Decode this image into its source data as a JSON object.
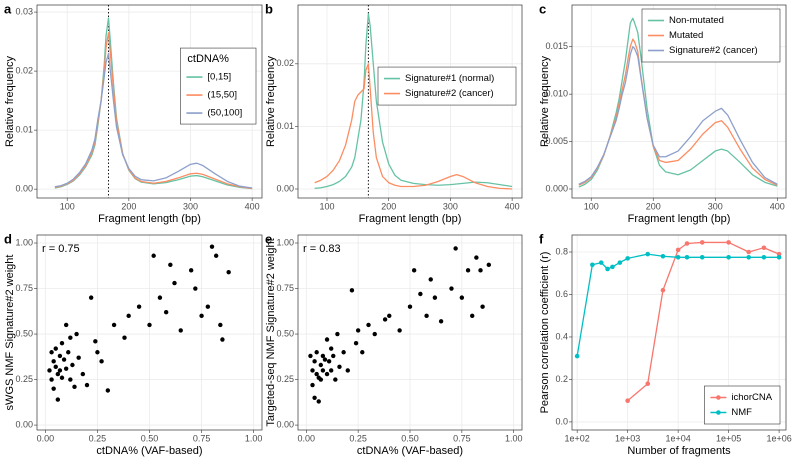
{
  "chart_data": [
    {
      "type": "line",
      "label": "a",
      "xlabel": "Fragment length (bp)",
      "ylabel": "Relative frequency",
      "xlim": [
        51,
        416
      ],
      "ylim": [
        -0.0015,
        0.0312
      ],
      "xticks": [
        100,
        200,
        300,
        400
      ],
      "yticks": [
        {
          "value": 0,
          "label": "0.00"
        },
        0.01,
        0.02,
        0.03
      ],
      "grid": true,
      "vline": 167,
      "legend_position": "right",
      "legend_title": "ctDNA%",
      "x": [
        80,
        90,
        100,
        110,
        120,
        130,
        140,
        145,
        150,
        155,
        160,
        163,
        167,
        170,
        175,
        180,
        190,
        200,
        210,
        220,
        240,
        260,
        280,
        300,
        310,
        320,
        340,
        360,
        380,
        400
      ],
      "series": [
        {
          "name": "[0,15]",
          "color": "#66c2a5",
          "values": [
            0.0002,
            0.0004,
            0.0008,
            0.0014,
            0.0024,
            0.0038,
            0.0058,
            0.0075,
            0.011,
            0.015,
            0.021,
            0.026,
            0.029,
            0.025,
            0.018,
            0.012,
            0.006,
            0.0032,
            0.0018,
            0.0012,
            0.0009,
            0.0011,
            0.0016,
            0.0022,
            0.0023,
            0.0021,
            0.0014,
            0.0007,
            0.0003,
            0.0001
          ]
        },
        {
          "name": "(15,50]",
          "color": "#fc8d62",
          "values": [
            0.0003,
            0.0005,
            0.0009,
            0.0015,
            0.0026,
            0.004,
            0.0062,
            0.008,
            0.0115,
            0.015,
            0.02,
            0.024,
            0.0265,
            0.023,
            0.017,
            0.0115,
            0.006,
            0.0033,
            0.0019,
            0.0013,
            0.001,
            0.0013,
            0.0019,
            0.0026,
            0.0027,
            0.0025,
            0.0017,
            0.0009,
            0.0004,
            0.0001
          ]
        },
        {
          "name": "(50,100]",
          "color": "#8da0cb",
          "values": [
            0.0004,
            0.0006,
            0.001,
            0.0017,
            0.0028,
            0.0043,
            0.0066,
            0.0085,
            0.012,
            0.015,
            0.019,
            0.0215,
            0.023,
            0.02,
            0.015,
            0.0105,
            0.0058,
            0.0035,
            0.0022,
            0.0016,
            0.0014,
            0.0019,
            0.003,
            0.0042,
            0.0044,
            0.004,
            0.0026,
            0.0013,
            0.0005,
            0.0002
          ]
        }
      ]
    },
    {
      "type": "line",
      "label": "b",
      "xlabel": "Fragment length (bp)",
      "ylabel": "Relative frequency",
      "xlim": [
        53,
        416
      ],
      "ylim": [
        -0.00144,
        0.0294
      ],
      "xticks": [
        100,
        200,
        300,
        400
      ],
      "yticks": [
        {
          "value": 0,
          "label": "0.00"
        },
        0.01,
        0.02
      ],
      "grid": true,
      "vline": 167,
      "legend_position": "right",
      "x": [
        80,
        90,
        100,
        110,
        120,
        130,
        140,
        145,
        150,
        155,
        160,
        163,
        167,
        170,
        175,
        180,
        190,
        200,
        210,
        220,
        240,
        260,
        280,
        300,
        310,
        320,
        340,
        360,
        380,
        400
      ],
      "series": [
        {
          "name": "Signature#1 (normal)",
          "color": "#66c2a5",
          "values": [
            0.0001,
            0.0002,
            0.0004,
            0.0007,
            0.0012,
            0.002,
            0.0035,
            0.005,
            0.008,
            0.011,
            0.017,
            0.023,
            0.028,
            0.026,
            0.02,
            0.014,
            0.0075,
            0.004,
            0.0022,
            0.0014,
            0.0009,
            0.0007,
            0.0006,
            0.0007,
            0.0008,
            0.0009,
            0.0011,
            0.001,
            0.0007,
            0.0004
          ]
        },
        {
          "name": "Signature#2 (cancer)",
          "color": "#fc8d62",
          "values": [
            0.001,
            0.0014,
            0.002,
            0.003,
            0.0045,
            0.007,
            0.011,
            0.014,
            0.015,
            0.0155,
            0.016,
            0.019,
            0.02,
            0.016,
            0.009,
            0.005,
            0.002,
            0.001,
            0.0006,
            0.0004,
            0.0004,
            0.0006,
            0.0012,
            0.002,
            0.0023,
            0.002,
            0.001,
            0.0004,
            0.0001,
            0
          ]
        }
      ]
    },
    {
      "type": "line",
      "label": "c",
      "xlabel": "Fragment length (bp)",
      "ylabel": "Relative frequency",
      "xlim": [
        69,
        414
      ],
      "ylim": [
        -0.00095,
        0.0194
      ],
      "xticks": [
        100,
        200,
        300,
        400
      ],
      "yticks": [
        {
          "value": 0,
          "label": "0.000"
        },
        {
          "value": 0.005,
          "label": "0.005"
        },
        {
          "value": 0.01,
          "label": "0.010"
        },
        0.015
      ],
      "grid": true,
      "legend_position": "top-right",
      "x": [
        80,
        90,
        100,
        110,
        120,
        130,
        140,
        145,
        150,
        155,
        160,
        163,
        167,
        170,
        175,
        180,
        190,
        200,
        210,
        220,
        240,
        260,
        280,
        300,
        310,
        320,
        340,
        360,
        380,
        400
      ],
      "series": [
        {
          "name": "Non-mutated",
          "color": "#66c2a5",
          "values": [
            0.0002,
            0.0005,
            0.001,
            0.002,
            0.0035,
            0.0055,
            0.008,
            0.0095,
            0.0115,
            0.0135,
            0.016,
            0.0175,
            0.018,
            0.0175,
            0.0165,
            0.014,
            0.0085,
            0.0045,
            0.0025,
            0.0018,
            0.0015,
            0.002,
            0.003,
            0.004,
            0.0042,
            0.004,
            0.0028,
            0.0015,
            0.0007,
            0.0003
          ]
        },
        {
          "name": "Mutated",
          "color": "#fc8d62",
          "values": [
            0.0004,
            0.0007,
            0.0012,
            0.0022,
            0.0035,
            0.0055,
            0.0075,
            0.009,
            0.0105,
            0.012,
            0.014,
            0.015,
            0.0158,
            0.0155,
            0.0145,
            0.012,
            0.0075,
            0.0045,
            0.003,
            0.0028,
            0.003,
            0.0042,
            0.0058,
            0.007,
            0.0072,
            0.0065,
            0.0042,
            0.0022,
            0.001,
            0.0004
          ]
        },
        {
          "name": "Signature#2 (cancer)",
          "color": "#8da0cb",
          "values": [
            0.0005,
            0.0008,
            0.0013,
            0.0023,
            0.0036,
            0.0054,
            0.0072,
            0.0085,
            0.01,
            0.0112,
            0.013,
            0.0142,
            0.015,
            0.0148,
            0.014,
            0.0118,
            0.0075,
            0.0046,
            0.0034,
            0.0034,
            0.004,
            0.0055,
            0.0072,
            0.0082,
            0.0085,
            0.0078,
            0.0052,
            0.0028,
            0.0012,
            0.0005
          ]
        }
      ]
    },
    {
      "type": "scatter",
      "label": "d",
      "xlabel": "ctDNA% (VAF-based)",
      "ylabel": "sWGS NMF Signature#2 weight",
      "annotation": "r = 0.75",
      "color": "#000000",
      "grid": true,
      "xlim": [
        -0.04,
        1.04
      ],
      "ylim": [
        -0.027,
        1.044
      ],
      "xticks": [
        {
          "value": 0,
          "label": "0.00"
        },
        0.25,
        {
          "value": 0.5,
          "label": "0.50"
        },
        0.75,
        {
          "value": 1,
          "label": "1.00"
        }
      ],
      "yticks": [
        {
          "value": 0,
          "label": "0.00"
        },
        0.25,
        {
          "value": 0.5,
          "label": "0.50"
        },
        0.75,
        {
          "value": 1,
          "label": "1.00"
        }
      ],
      "x": [
        0.02,
        0.03,
        0.03,
        0.04,
        0.04,
        0.05,
        0.05,
        0.06,
        0.06,
        0.07,
        0.07,
        0.08,
        0.08,
        0.09,
        0.1,
        0.1,
        0.11,
        0.12,
        0.12,
        0.13,
        0.14,
        0.15,
        0.16,
        0.18,
        0.2,
        0.22,
        0.24,
        0.25,
        0.27,
        0.3,
        0.33,
        0.38,
        0.4,
        0.45,
        0.5,
        0.52,
        0.55,
        0.58,
        0.6,
        0.62,
        0.65,
        0.7,
        0.72,
        0.75,
        0.78,
        0.8,
        0.82,
        0.84,
        0.85,
        0.88
      ],
      "values": [
        0.3,
        0.4,
        0.25,
        0.35,
        0.2,
        0.32,
        0.42,
        0.28,
        0.14,
        0.38,
        0.3,
        0.45,
        0.26,
        0.36,
        0.55,
        0.31,
        0.4,
        0.25,
        0.48,
        0.33,
        0.21,
        0.5,
        0.37,
        0.28,
        0.22,
        0.7,
        0.46,
        0.4,
        0.35,
        0.19,
        0.55,
        0.48,
        0.6,
        0.65,
        0.55,
        0.93,
        0.7,
        0.62,
        0.88,
        0.78,
        0.52,
        0.85,
        0.75,
        0.6,
        0.65,
        0.98,
        0.93,
        0.55,
        0.47,
        0.84
      ]
    },
    {
      "type": "scatter",
      "label": "e",
      "xlabel": "ctDNA% (VAF-based)",
      "ylabel": "Targeted-seq NMF Signature#2 weight",
      "annotation": "r = 0.83",
      "color": "#000000",
      "grid": true,
      "xlim": [
        -0.04,
        1.04
      ],
      "ylim": [
        -0.027,
        1.044
      ],
      "xticks": [
        {
          "value": 0,
          "label": "0.00"
        },
        0.25,
        {
          "value": 0.5,
          "label": "0.50"
        },
        0.75,
        {
          "value": 1,
          "label": "1.00"
        }
      ],
      "yticks": [
        {
          "value": 0,
          "label": "0.00"
        },
        0.25,
        {
          "value": 0.5,
          "label": "0.50"
        },
        0.75,
        {
          "value": 1,
          "label": "1.00"
        }
      ],
      "x": [
        0.02,
        0.03,
        0.03,
        0.04,
        0.04,
        0.05,
        0.05,
        0.06,
        0.06,
        0.07,
        0.07,
        0.08,
        0.08,
        0.09,
        0.1,
        0.1,
        0.11,
        0.12,
        0.12,
        0.13,
        0.14,
        0.15,
        0.16,
        0.18,
        0.2,
        0.22,
        0.24,
        0.25,
        0.27,
        0.3,
        0.33,
        0.38,
        0.4,
        0.45,
        0.5,
        0.52,
        0.55,
        0.58,
        0.6,
        0.62,
        0.65,
        0.7,
        0.72,
        0.75,
        0.78,
        0.8,
        0.82,
        0.84,
        0.85,
        0.88
      ],
      "values": [
        0.38,
        0.3,
        0.22,
        0.35,
        0.15,
        0.28,
        0.4,
        0.26,
        0.13,
        0.33,
        0.25,
        0.38,
        0.3,
        0.36,
        0.47,
        0.28,
        0.35,
        0.3,
        0.42,
        0.38,
        0.25,
        0.5,
        0.32,
        0.4,
        0.3,
        0.74,
        0.45,
        0.52,
        0.4,
        0.55,
        0.5,
        0.58,
        0.6,
        0.52,
        0.65,
        0.85,
        0.72,
        0.6,
        0.8,
        0.7,
        0.57,
        0.75,
        0.97,
        0.7,
        0.85,
        0.6,
        0.92,
        0.85,
        0.65,
        0.88
      ]
    },
    {
      "type": "line",
      "label": "f",
      "xlabel": "Number of fragments",
      "ylabel": "Pearson correlation coefficient (r)",
      "xlog": true,
      "markers": true,
      "grid": true,
      "legend_position": "bottom-right",
      "xlim": [
        79,
        1370000
      ],
      "ylim": [
        -0.038,
        0.88
      ],
      "xticks": [
        {
          "value": 100,
          "label": "1e+02"
        },
        {
          "value": 1000,
          "label": "1e+03"
        },
        {
          "value": 10000,
          "label": "1e+04"
        },
        {
          "value": 100000,
          "label": "1e+05"
        },
        {
          "value": 1000000,
          "label": "1e+06"
        }
      ],
      "yticks": [
        {
          "value": 0,
          "label": "0.0"
        },
        0.2,
        0.4,
        0.6,
        0.8
      ],
      "x": [
        100,
        200,
        300,
        400,
        500,
        700,
        1000,
        2500,
        5000,
        10000,
        15000,
        30000,
        100000,
        250000,
        500000,
        1000000
      ],
      "series": [
        {
          "name": "ichorCNA",
          "color": "#f8766d",
          "values": [
            null,
            null,
            null,
            null,
            null,
            null,
            0.1,
            0.18,
            0.62,
            0.81,
            0.84,
            0.845,
            0.845,
            0.8,
            0.82,
            0.79
          ]
        },
        {
          "name": "NMF",
          "color": "#00bfc4",
          "values": [
            0.31,
            0.74,
            0.75,
            0.72,
            0.73,
            0.75,
            0.77,
            0.79,
            0.78,
            0.775,
            0.775,
            0.775,
            0.775,
            0.775,
            0.775,
            0.775
          ]
        }
      ]
    }
  ]
}
